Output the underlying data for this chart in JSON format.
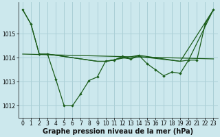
{
  "background_color": "#cce8ed",
  "grid_color": "#aacfd6",
  "line_color": "#1a5c1a",
  "marker_color": "#1a5c1a",
  "xlabel": "Graphe pression niveau de la mer (hPa)",
  "xlabel_fontsize": 7.0,
  "tick_fontsize": 5.5,
  "ylim": [
    1011.5,
    1016.3
  ],
  "xlim": [
    -0.5,
    23.5
  ],
  "yticks": [
    1012,
    1013,
    1014,
    1015
  ],
  "xticks": [
    0,
    1,
    2,
    3,
    4,
    5,
    6,
    7,
    8,
    9,
    10,
    11,
    12,
    13,
    14,
    15,
    16,
    17,
    18,
    19,
    20,
    21,
    22,
    23
  ],
  "series1_x": [
    0,
    1,
    2,
    3
  ],
  "series1_y": [
    1016.0,
    1015.4,
    1014.15,
    1014.15
  ],
  "series2_x": [
    3,
    4,
    5,
    6,
    7,
    8,
    9,
    10,
    11,
    12,
    13,
    14,
    15,
    16,
    17,
    18,
    19,
    20,
    21,
    22,
    23
  ],
  "series2_y": [
    1014.15,
    1013.1,
    1012.0,
    1012.0,
    1012.5,
    1013.05,
    1013.2,
    1013.85,
    1013.9,
    1014.05,
    1013.95,
    1014.1,
    1013.75,
    1013.5,
    1013.25,
    1013.4,
    1013.35,
    1013.9,
    1013.9,
    1015.4,
    1016.0
  ],
  "series3_x": [
    0,
    1,
    2,
    3,
    9,
    10,
    11,
    12,
    13,
    14,
    19,
    20,
    23
  ],
  "series3_y": [
    1016.0,
    1015.4,
    1014.15,
    1014.15,
    1013.85,
    1013.85,
    1013.9,
    1014.0,
    1013.95,
    1014.05,
    1013.85,
    1013.9,
    1016.0
  ],
  "series4_x": [
    0,
    23
  ],
  "series4_y": [
    1014.15,
    1013.95
  ],
  "series5_x": [
    3,
    9,
    10,
    14,
    19,
    23
  ],
  "series5_y": [
    1014.15,
    1013.85,
    1013.85,
    1014.1,
    1013.85,
    1016.0
  ]
}
